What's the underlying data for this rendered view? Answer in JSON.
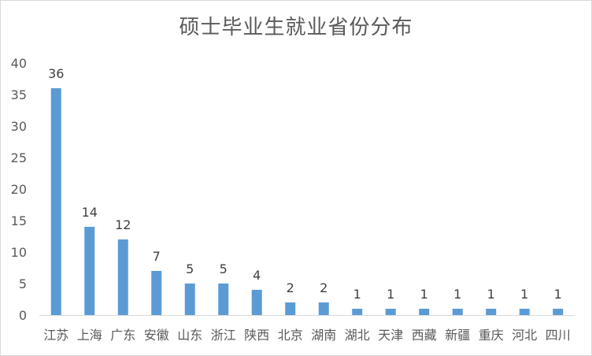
{
  "chart_data": {
    "type": "bar",
    "title": "硕士毕业生就业省份分布",
    "categories": [
      "江苏",
      "上海",
      "广东",
      "安徽",
      "山东",
      "浙江",
      "陕西",
      "北京",
      "湖南",
      "湖北",
      "天津",
      "西藏",
      "新疆",
      "重庆",
      "河北",
      "四川"
    ],
    "values": [
      36,
      14,
      12,
      7,
      5,
      5,
      4,
      2,
      2,
      1,
      1,
      1,
      1,
      1,
      1,
      1
    ],
    "ylim": [
      0,
      40
    ],
    "yticks": [
      0,
      5,
      10,
      15,
      20,
      25,
      30,
      35,
      40
    ],
    "grid": false,
    "data_labels": true,
    "bar_color": "#5b9bd5"
  }
}
